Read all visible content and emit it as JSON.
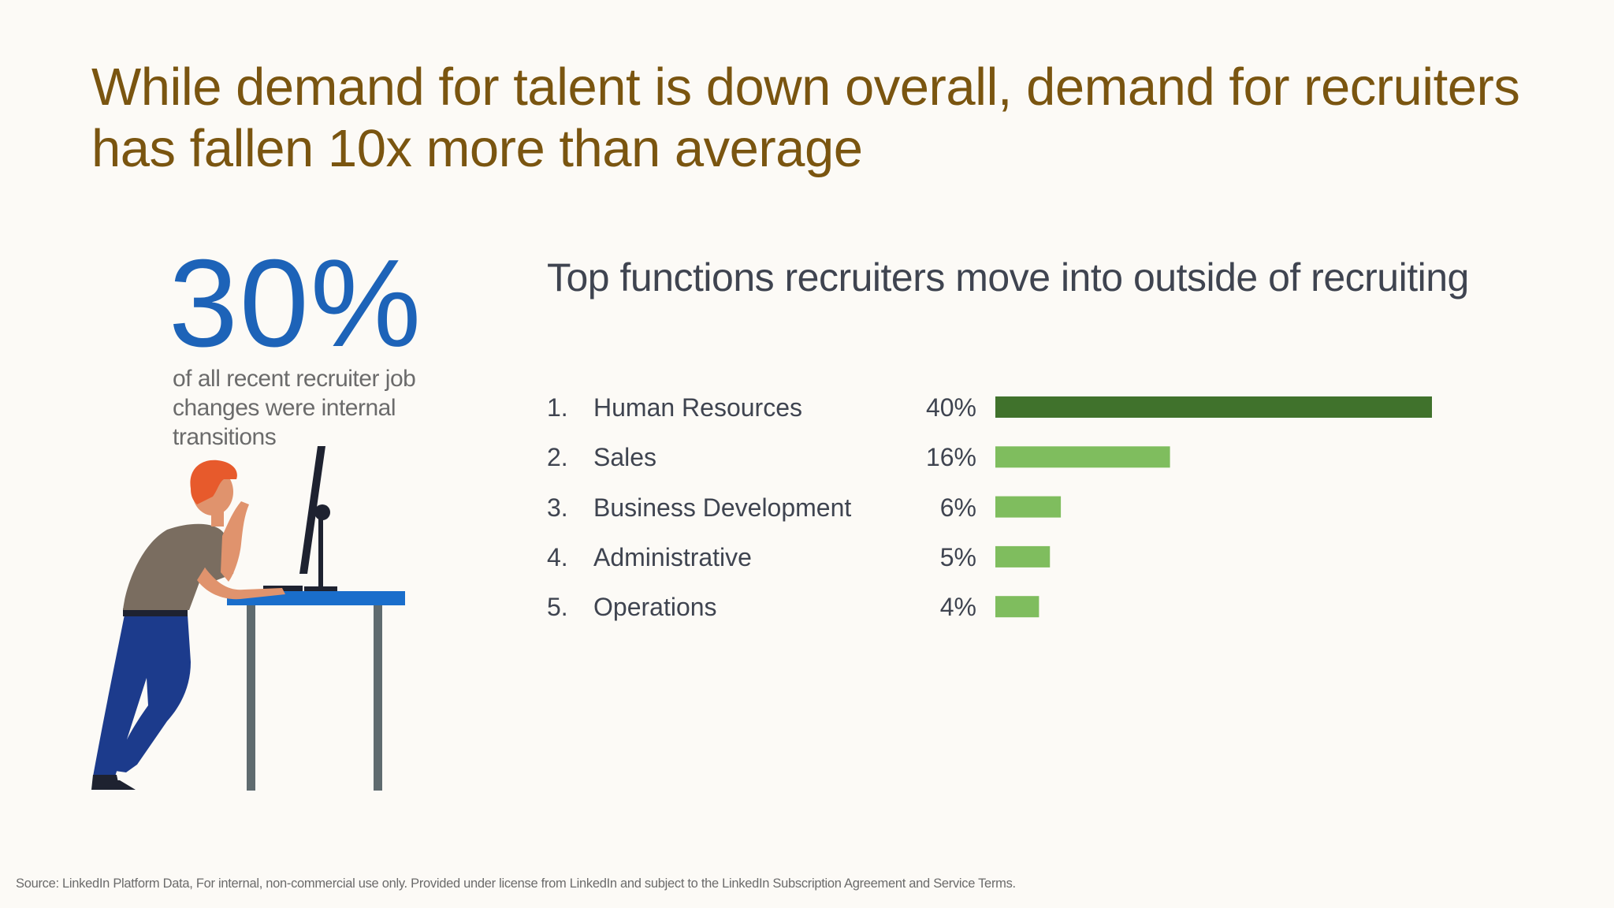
{
  "headline": "While demand for talent is down overall, demand for recruiters has fallen 10x more than average",
  "stat": {
    "value": "30%",
    "description": "of all recent recruiter job changes were internal transitions"
  },
  "chart_data": {
    "type": "bar",
    "orientation": "horizontal",
    "title": "Top functions recruiters move into outside of recruiting",
    "ranks": [
      "1.",
      "2.",
      "3.",
      "4.",
      "5."
    ],
    "categories": [
      "Human Resources",
      "Sales",
      "Business Development",
      "Administrative",
      "Operations"
    ],
    "values": [
      40,
      16,
      6,
      5,
      4
    ],
    "value_labels": [
      "40%",
      "16%",
      "6%",
      "5%",
      "4%"
    ],
    "xlabel": "",
    "ylabel": "",
    "xlim": [
      0,
      40
    ],
    "grid": false,
    "colors": {
      "top": "#40722c",
      "rest": "#7fbd5e"
    }
  },
  "footer": {
    "source": "Source: LinkedIn Platform Data, For internal, non-commercial use only. Provided under license from LinkedIn and subject to the LinkedIn Subscription Agreement and Service Terms."
  },
  "colors": {
    "background": "#fcfaf6",
    "headline": "#7a5510",
    "stat": "#1d63b8",
    "desk": "#1a6ecb"
  }
}
